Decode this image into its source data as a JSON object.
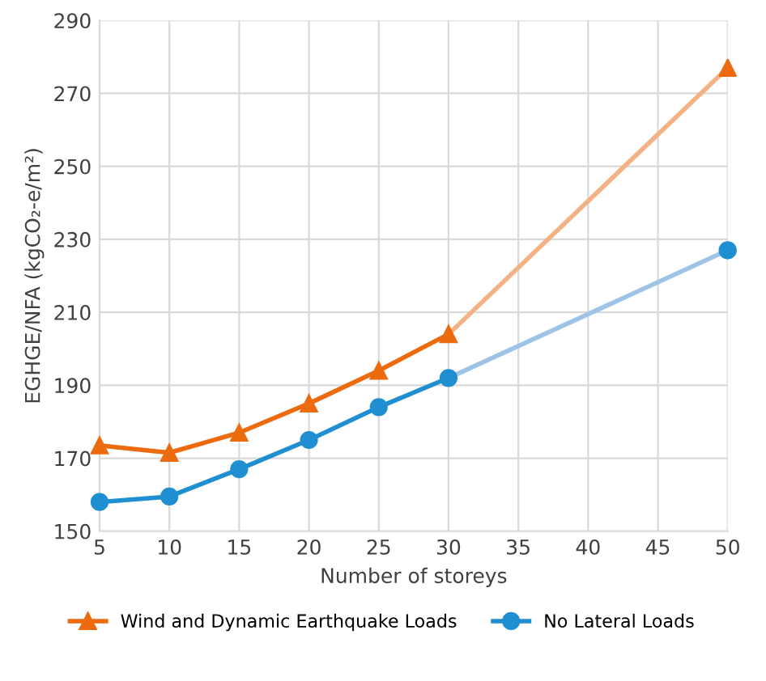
{
  "chart_data": {
    "type": "line",
    "xlabel": "Number of storeys",
    "ylabel": "EGHGE/NFA (kgCO₂-e/m²)",
    "xlim": [
      5,
      50
    ],
    "xticks": [
      5,
      10,
      15,
      20,
      25,
      30,
      35,
      40,
      45,
      50
    ],
    "ylim": [
      150,
      290
    ],
    "yticks": [
      150,
      170,
      190,
      210,
      230,
      250,
      270,
      290
    ],
    "grid": true,
    "legend": "bottom",
    "series": [
      {
        "color": "#f4b183",
        "marker": "none",
        "x": [
          30,
          50
        ],
        "values": [
          204,
          277
        ]
      },
      {
        "color": "#9dc3e6",
        "marker": "none",
        "x": [
          30,
          50
        ],
        "values": [
          192,
          227
        ]
      },
      {
        "name": "Wind and Dynamic Earthquake Loads",
        "color": "#ed6b0f",
        "marker": "triangle",
        "x": [
          5,
          10,
          15,
          20,
          25,
          30
        ],
        "values": [
          173.5,
          171.5,
          177,
          185,
          194,
          204
        ]
      },
      {
        "name": "No Lateral Loads",
        "color": "#1f8fd1",
        "marker": "circle",
        "x": [
          5,
          10,
          15,
          20,
          25,
          30
        ],
        "values": [
          158,
          159.5,
          167,
          175,
          184,
          192
        ]
      },
      {
        "type": "scatter",
        "color": "#ed6b0f",
        "marker": "triangle",
        "x": [
          50
        ],
        "values": [
          277
        ]
      },
      {
        "type": "scatter",
        "color": "#1f8fd1",
        "marker": "circle",
        "x": [
          50
        ],
        "values": [
          227
        ]
      }
    ]
  }
}
